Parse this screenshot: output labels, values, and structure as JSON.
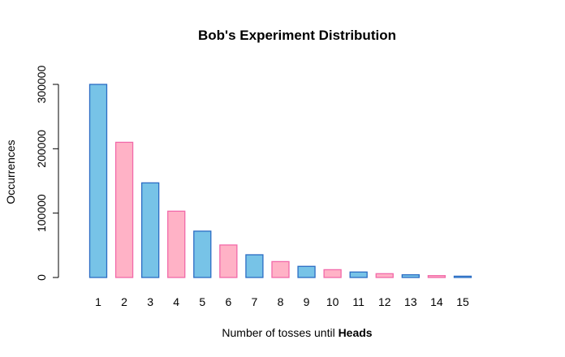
{
  "chart_data": {
    "type": "bar",
    "title": "Bob's Experiment Distribution",
    "xlabel_prefix": "Number of tosses until ",
    "xlabel_bold": "Heads",
    "ylabel": "Occurrences",
    "categories": [
      "1",
      "2",
      "3",
      "4",
      "5",
      "6",
      "7",
      "8",
      "9",
      "10",
      "11",
      "12",
      "13",
      "14",
      "15"
    ],
    "values": [
      300000,
      210000,
      147000,
      103000,
      72000,
      50500,
      35300,
      24700,
      17300,
      12100,
      8500,
      5900,
      4200,
      2900,
      2000
    ],
    "ylim": [
      0,
      300000
    ],
    "yticks": [
      0,
      100000,
      200000,
      300000
    ],
    "ytick_labels": [
      "0",
      "100000",
      "200000",
      "300000"
    ],
    "grid": false,
    "bar_colors": {
      "fill": [
        "#77c3e7",
        "#ffb2c6"
      ],
      "stroke": [
        "#2b6cc4",
        "#f269a9"
      ]
    }
  }
}
